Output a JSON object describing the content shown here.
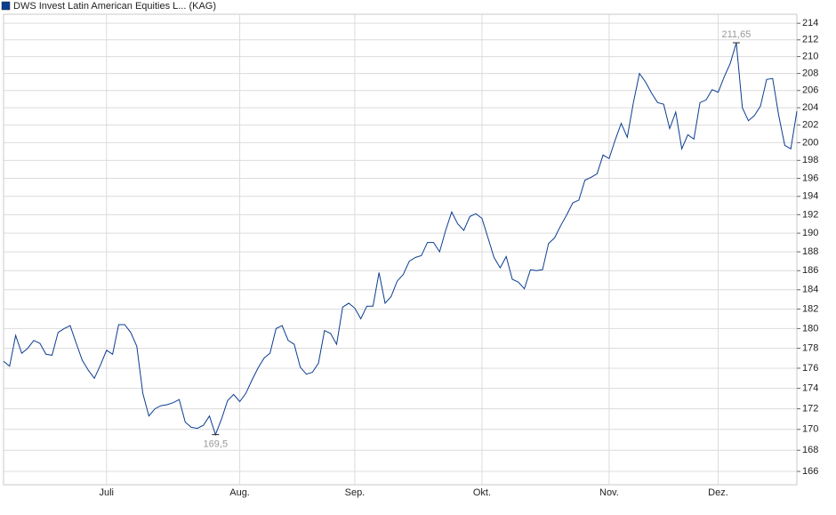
{
  "chart_data": {
    "type": "line",
    "log_scale": true,
    "grid": true,
    "categories": [
      null,
      null,
      null,
      null,
      null,
      null,
      null,
      null,
      null,
      null,
      null,
      null,
      null,
      null,
      null,
      null,
      null,
      "Juli",
      null,
      null,
      null,
      null,
      null,
      null,
      null,
      null,
      null,
      null,
      null,
      null,
      null,
      null,
      null,
      null,
      null,
      null,
      null,
      null,
      null,
      "Aug.",
      null,
      null,
      null,
      null,
      null,
      null,
      null,
      null,
      null,
      null,
      null,
      null,
      null,
      null,
      null,
      null,
      null,
      null,
      "Sep.",
      null,
      null,
      null,
      null,
      null,
      null,
      null,
      null,
      null,
      null,
      null,
      null,
      null,
      null,
      null,
      null,
      null,
      null,
      null,
      null,
      "Okt.",
      null,
      null,
      null,
      null,
      null,
      null,
      null,
      null,
      null,
      null,
      null,
      null,
      null,
      null,
      null,
      null,
      null,
      null,
      null,
      null,
      "Nov.",
      null,
      null,
      null,
      null,
      null,
      null,
      null,
      null,
      null,
      null,
      null,
      null,
      null,
      null,
      null,
      null,
      null,
      "Dez.",
      null,
      null,
      null,
      null,
      null,
      null,
      null,
      null,
      null,
      null,
      null,
      null,
      null
    ],
    "series": [
      {
        "name": "DWS Invest Latin American Equities L... (KAG)",
        "color": "#0b3d91",
        "values": [
          176.7,
          176.2,
          179.3,
          177.5,
          178,
          178.8,
          178.5,
          177.4,
          177.3,
          179.6,
          180,
          180.3,
          178.5,
          176.8,
          175.8,
          175,
          176.3,
          177.8,
          177.4,
          180.4,
          180.4,
          179.6,
          178.2,
          173.5,
          171.3,
          172,
          172.3,
          172.4,
          172.6,
          172.9,
          170.7,
          170.2,
          170.1,
          170.4,
          171.3,
          169.5,
          171,
          172.8,
          173.4,
          172.7,
          173.5,
          174.8,
          176,
          177,
          177.5,
          180,
          180.3,
          178.8,
          178.4,
          176.1,
          175.4,
          175.6,
          176.5,
          179.8,
          179.5,
          178.4,
          182.2,
          182.6,
          182.1,
          181,
          182.3,
          182.3,
          185.8,
          182.6,
          183.3,
          184.9,
          185.6,
          187,
          187.4,
          187.6,
          189,
          189,
          188,
          190.3,
          192.3,
          191,
          190.3,
          191.8,
          192.1,
          191.6,
          189.5,
          187.4,
          186.3,
          187.5,
          185.1,
          184.8,
          184.1,
          186.1,
          186,
          186.1,
          188.9,
          189.5,
          190.8,
          192,
          193.3,
          193.6,
          195.8,
          196.1,
          196.5,
          198.6,
          198.2,
          200.3,
          202.2,
          200.6,
          204.6,
          208,
          207,
          205.7,
          204.6,
          204.4,
          201.6,
          203.5,
          199.3,
          200.9,
          200.4,
          204.6,
          204.9,
          206.1,
          205.8,
          207.6,
          209.2,
          211.65,
          204,
          202.5,
          203.1,
          204.2,
          207.3,
          207.4,
          203.1,
          199.7,
          199.3,
          203.6
        ],
        "value_labels": [
          null,
          null,
          null,
          null,
          null,
          null,
          null,
          null,
          null,
          null,
          null,
          null,
          null,
          null,
          null,
          null,
          null,
          null,
          null,
          null,
          null,
          null,
          null,
          null,
          null,
          null,
          null,
          null,
          null,
          null,
          null,
          null,
          null,
          null,
          null,
          "169,5",
          null,
          null,
          null,
          null,
          null,
          null,
          null,
          null,
          null,
          null,
          null,
          null,
          null,
          null,
          null,
          null,
          null,
          null,
          null,
          null,
          null,
          null,
          null,
          null,
          null,
          null,
          null,
          null,
          null,
          null,
          null,
          null,
          null,
          null,
          null,
          null,
          null,
          null,
          null,
          null,
          null,
          null,
          null,
          null,
          null,
          null,
          null,
          null,
          null,
          null,
          null,
          null,
          null,
          null,
          null,
          null,
          null,
          null,
          null,
          null,
          null,
          null,
          null,
          null,
          null,
          null,
          null,
          null,
          null,
          null,
          null,
          null,
          null,
          null,
          null,
          null,
          null,
          null,
          null,
          null,
          null,
          null,
          null,
          null,
          null,
          "211,65",
          null,
          null,
          null,
          null,
          null,
          null,
          null,
          null,
          null,
          null
        ]
      }
    ],
    "ylim": [
      164.75,
      215.1
    ],
    "yticks": [
      166,
      168,
      170,
      172,
      174,
      176,
      178,
      180,
      182,
      184,
      186,
      188,
      190,
      192,
      194,
      196,
      198,
      200,
      202,
      204,
      206,
      208,
      210,
      212,
      214
    ]
  }
}
